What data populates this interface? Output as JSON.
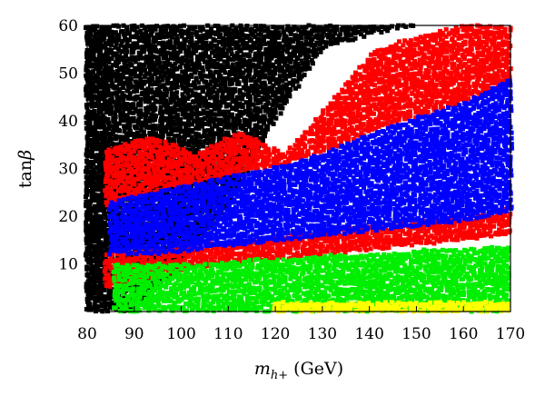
{
  "chart_data": {
    "type": "scatter",
    "title": "",
    "xlabel": "m_{h+} (GeV)",
    "xlabel_parts": {
      "main": "m",
      "sub": "h+",
      "unit": " (GeV)"
    },
    "ylabel": "tanβ",
    "ylabel_parts": {
      "fn": "tan",
      "sym": "β"
    },
    "xlim": [
      80,
      170
    ],
    "ylim": [
      0,
      60
    ],
    "xticks": [
      80,
      90,
      100,
      110,
      120,
      130,
      140,
      150,
      160,
      170
    ],
    "yticks": [
      10,
      20,
      30,
      40,
      50,
      60
    ],
    "grid": false,
    "legend": "none",
    "series": [
      {
        "color": "#000000",
        "regions": [
          {
            "x_min": 80,
            "x_max": 170,
            "y_low": [
              0,
              0,
              10,
              22,
              40,
              55,
              58,
              60,
              60,
              60
            ],
            "y_high": [
              60,
              60,
              60,
              60,
              60,
              60,
              60,
              60,
              60,
              60
            ]
          },
          {
            "x_min": 80,
            "x_max": 84,
            "y_low": [
              0,
              0,
              0,
              0,
              0,
              0,
              0,
              0,
              0,
              0
            ],
            "y_high": [
              60,
              60,
              60,
              60,
              60,
              60,
              60,
              60,
              60,
              60
            ]
          }
        ]
      },
      {
        "color": "#ff0000",
        "regions": [
          {
            "x_min": 84,
            "x_max": 170,
            "y_low": [
              22,
              25,
              27,
              29,
              31,
              34,
              38,
              41,
              44,
              47
            ],
            "y_high": [
              34,
              37,
              33,
              38,
              33,
              44,
              55,
              58,
              60,
              60
            ]
          },
          {
            "x_min": 84,
            "x_max": 170,
            "y_low": [
              5,
              7,
              9,
              10,
              11,
              12,
              13,
              14,
              15,
              16
            ],
            "y_high": [
              12,
              13,
              14,
              15,
              16,
              17,
              18,
              19,
              20,
              22
            ]
          }
        ]
      },
      {
        "color": "#0000ff",
        "regions": [
          {
            "x_min": 85,
            "x_max": 170,
            "y_low": [
              12,
              12,
              13,
              14,
              15,
              16,
              17,
              18,
              19,
              21
            ],
            "y_high": [
              23,
              25,
              27,
              29,
              31,
              34,
              38,
              41,
              44,
              49
            ]
          }
        ]
      },
      {
        "color": "#00ee00",
        "regions": [
          {
            "x_min": 86,
            "x_max": 170,
            "y_low": [
              0,
              0,
              0,
              0,
              0,
              0,
              0,
              0,
              0,
              0
            ],
            "y_high": [
              10,
              10,
              10,
              11,
              11,
              12,
              12,
              13,
              13,
              14
            ]
          }
        ]
      },
      {
        "color": "#ffff00",
        "regions": [
          {
            "x_min": 120,
            "x_max": 170,
            "y_low": [
              0,
              0,
              0,
              0,
              0,
              0,
              0,
              0,
              0,
              0
            ],
            "y_high": [
              2,
              2,
              2,
              2,
              2,
              2,
              2,
              2,
              2,
              2
            ]
          }
        ]
      }
    ]
  }
}
